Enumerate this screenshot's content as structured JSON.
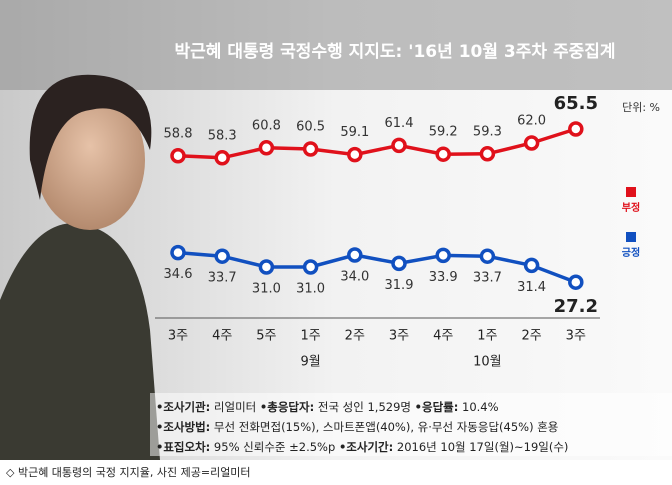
{
  "chart_data": {
    "type": "line",
    "title": "박근혜 대통령 국정수행 지지도: '16년 10월 3주차 주중집계",
    "unit_label": "단위: %",
    "categories": [
      "3주",
      "4주",
      "5주",
      "1주",
      "2주",
      "3주",
      "4주",
      "1주",
      "2주",
      "3주"
    ],
    "month_labels": [
      null,
      null,
      null,
      "9월",
      null,
      null,
      null,
      "10월",
      null,
      null
    ],
    "ylim": [
      20,
      70
    ],
    "series": [
      {
        "name": "부정",
        "color": "#e0111b",
        "values": [
          58.8,
          58.3,
          60.8,
          60.5,
          59.1,
          61.4,
          59.2,
          59.3,
          62.0,
          65.5
        ],
        "value_labels": [
          "58.8",
          "58.3",
          "60.8",
          "60.5",
          "59.1",
          "61.4",
          "59.2",
          "59.3",
          "62.0",
          "65.5"
        ]
      },
      {
        "name": "긍정",
        "color": "#1150c0",
        "values": [
          34.6,
          33.7,
          31.0,
          31.0,
          34.0,
          31.9,
          33.9,
          33.7,
          31.4,
          27.2
        ],
        "value_labels": [
          "34.6",
          "33.7",
          "31.0",
          "31.0",
          "34.0",
          "31.9",
          "33.9",
          "33.7",
          "31.4",
          "27.2"
        ]
      }
    ]
  },
  "notes": [
    [
      {
        "label": "•조사기관:",
        "text": " 리얼미터 "
      },
      {
        "label": "•총응답자:",
        "text": " 전국 성인 1,529명 "
      },
      {
        "label": "•응답률:",
        "text": " 10.4%"
      }
    ],
    [
      {
        "label": "•조사방법:",
        "text": " 무선 전화면접(15%), 스마트폰앱(40%), 유·무선 자동응답(45%) 혼용"
      }
    ],
    [
      {
        "label": "•표집오차:",
        "text": " 95% 신뢰수준 ±2.5%p "
      },
      {
        "label": "•조사기간:",
        "text": " 2016년 10월 17일(월)~19일(수)"
      }
    ]
  ],
  "caption": "◇ 박근혜 대통령의 국정 지지율, 사진 제공=리얼미터"
}
